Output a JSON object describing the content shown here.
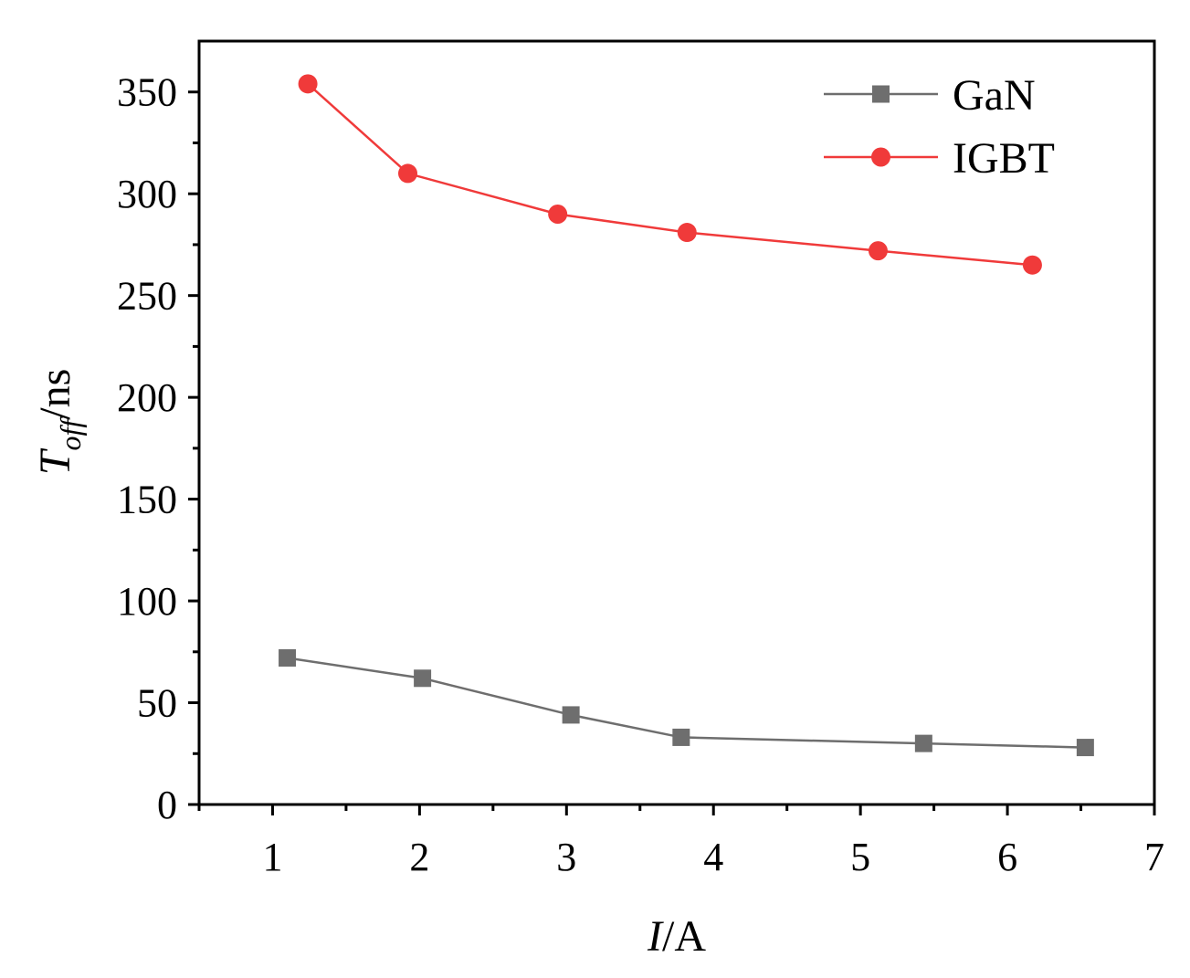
{
  "chart_data": {
    "type": "line",
    "title": "",
    "xlabel": {
      "var": "I",
      "unit": "/A"
    },
    "ylabel": {
      "var": "T",
      "sub": "off",
      "unit": "/ns"
    },
    "xlim": [
      0.5,
      7
    ],
    "ylim": [
      0,
      375
    ],
    "x_ticks": [
      1,
      2,
      3,
      4,
      5,
      6,
      7
    ],
    "y_ticks": [
      0,
      50,
      100,
      150,
      200,
      250,
      300,
      350
    ],
    "legend_position": "top-right",
    "series": [
      {
        "name": "GaN",
        "color": "#6e6e6e",
        "marker": "square",
        "x": [
          1.1,
          2.02,
          3.03,
          3.78,
          5.43,
          6.53
        ],
        "y": [
          72,
          62,
          44,
          33,
          30,
          28
        ]
      },
      {
        "name": "IGBT",
        "color": "#f03a3a",
        "marker": "circle",
        "x": [
          1.24,
          1.92,
          2.94,
          3.82,
          5.12,
          6.17
        ],
        "y": [
          354,
          310,
          290,
          281,
          272,
          265
        ]
      }
    ]
  }
}
